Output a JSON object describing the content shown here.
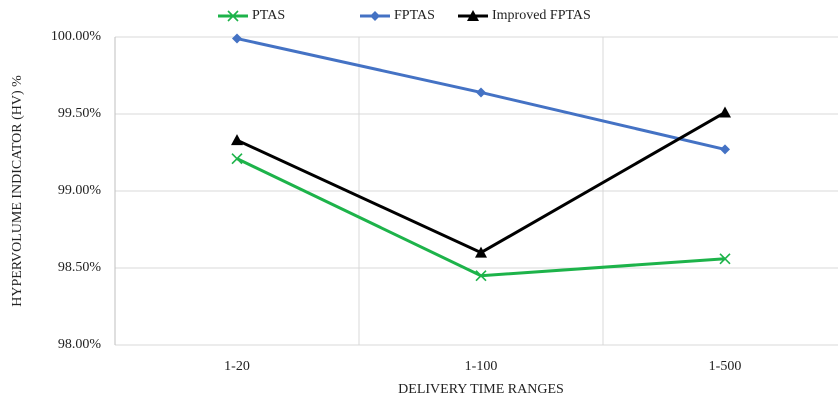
{
  "chart_data": {
    "type": "line",
    "x_label": "DELIVERY TIME RANGES",
    "y_label": "HYPERVOLUME INDICATOR (HV) %",
    "categories": [
      "1-20",
      "1-100",
      "1-500"
    ],
    "series": [
      {
        "name": "PTAS",
        "color": "#1db34a",
        "marker": "x",
        "values": [
          99.21,
          98.45,
          98.56
        ]
      },
      {
        "name": "FPTAS",
        "color": "#4472c4",
        "marker": "diamond",
        "values": [
          99.99,
          99.64,
          99.27
        ]
      },
      {
        "name": "Improved FPTAS",
        "color": "#000000",
        "marker": "triangle",
        "values": [
          99.33,
          98.6,
          99.51
        ]
      }
    ],
    "ylim": [
      98,
      100
    ],
    "yticks": [
      {
        "value": 98,
        "label": "98.00%"
      },
      {
        "value": 98.5,
        "label": "98.50%"
      },
      {
        "value": 99,
        "label": "99.00%"
      },
      {
        "value": 99.5,
        "label": "99.50%"
      },
      {
        "value": 100,
        "label": "100.00%"
      }
    ],
    "grid": true,
    "legend": "top"
  }
}
